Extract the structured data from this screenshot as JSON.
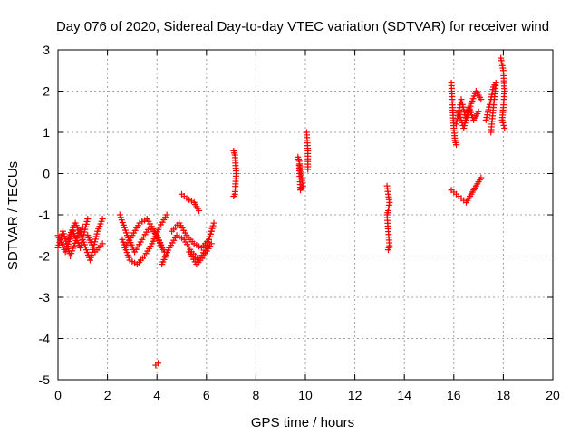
{
  "chart_data": {
    "type": "scatter",
    "title": "Day 076 of 2020, Sidereal Day-to-day VTEC variation (SDTVAR) for receiver wind",
    "xlabel": "GPS time / hours",
    "ylabel": "SDTVAR / TECUs",
    "xlim": [
      0,
      20
    ],
    "ylim": [
      -5,
      3
    ],
    "xticks": [
      "0",
      "2",
      "4",
      "6",
      "8",
      "10",
      "12",
      "14",
      "16",
      "18",
      "20"
    ],
    "yticks": [
      "-5",
      "-4",
      "-3",
      "-2",
      "-1",
      "0",
      "1",
      "2",
      "3"
    ],
    "grid": true,
    "marker": "+",
    "color": "#ff0000",
    "series": [
      {
        "name": "SDTVAR",
        "segments": [
          {
            "x": [
              0.0,
              0.2,
              0.5,
              0.8,
              1.0
            ],
            "y": [
              -1.8,
              -1.4,
              -2.0,
              -1.5,
              -1.3
            ]
          },
          {
            "x": [
              0.0,
              0.3,
              0.6,
              0.9,
              1.2
            ],
            "y": [
              -1.5,
              -1.9,
              -1.4,
              -1.8,
              -1.1
            ]
          },
          {
            "x": [
              0.4,
              0.7,
              1.0,
              1.3,
              1.6,
              1.8
            ],
            "y": [
              -1.6,
              -1.2,
              -1.6,
              -2.1,
              -1.4,
              -1.1
            ]
          },
          {
            "x": [
              1.2,
              1.5,
              1.8
            ],
            "y": [
              -1.5,
              -1.9,
              -1.7
            ]
          },
          {
            "x": [
              2.5,
              2.8,
              3.1,
              3.4,
              3.7,
              4.0,
              4.3
            ],
            "y": [
              -1.0,
              -1.5,
              -1.9,
              -1.6,
              -1.3,
              -1.5,
              -1.9
            ]
          },
          {
            "x": [
              2.6,
              2.9,
              3.2,
              3.5,
              3.8,
              4.1,
              4.4
            ],
            "y": [
              -1.6,
              -2.1,
              -2.2,
              -2.0,
              -1.7,
              -1.3,
              -1.0
            ]
          },
          {
            "x": [
              2.7,
              3.0,
              3.3,
              3.6,
              3.9,
              4.2
            ],
            "y": [
              -1.8,
              -1.5,
              -1.2,
              -1.1,
              -1.4,
              -1.8
            ]
          },
          {
            "x": [
              4.2,
              4.5,
              4.8,
              5.1,
              5.4,
              5.7,
              6.0,
              6.2
            ],
            "y": [
              -2.2,
              -1.8,
              -1.5,
              -1.6,
              -1.9,
              -2.1,
              -1.8,
              -1.4
            ]
          },
          {
            "x": [
              4.6,
              4.9,
              5.2,
              5.5,
              5.8,
              6.1,
              6.3
            ],
            "y": [
              -1.4,
              -1.2,
              -1.5,
              -1.7,
              -1.8,
              -1.6,
              -1.2
            ]
          },
          {
            "x": [
              5.0,
              5.2,
              5.5,
              5.7
            ],
            "y": [
              -0.5,
              -0.6,
              -0.7,
              -0.9
            ]
          },
          {
            "x": [
              5.3,
              5.6,
              5.9,
              6.2
            ],
            "y": [
              -1.9,
              -2.2,
              -2.0,
              -1.7
            ]
          },
          {
            "x": [
              3.95,
              4.05
            ],
            "y": [
              -4.65,
              -4.6
            ]
          },
          {
            "x": [
              7.1,
              7.15,
              7.2,
              7.15,
              7.1
            ],
            "y": [
              0.55,
              0.45,
              0.0,
              -0.5,
              -0.55
            ]
          },
          {
            "x": [
              9.7,
              9.75,
              9.8,
              9.85,
              9.9,
              9.8,
              9.75
            ],
            "y": [
              0.4,
              0.3,
              0.1,
              -0.1,
              -0.3,
              -0.4,
              0.2
            ]
          },
          {
            "x": [
              10.05,
              10.1,
              10.1
            ],
            "y": [
              1.0,
              0.55,
              0.1
            ]
          },
          {
            "x": [
              13.3,
              13.35,
              13.4,
              13.35,
              13.3,
              13.4,
              13.35
            ],
            "y": [
              -0.3,
              -0.5,
              -0.7,
              -0.9,
              -1.0,
              -1.75,
              -1.85
            ]
          },
          {
            "x": [
              15.9,
              15.95,
              16.0,
              16.05,
              16.1
            ],
            "y": [
              2.2,
              1.6,
              1.1,
              0.8,
              0.7
            ]
          },
          {
            "x": [
              16.1,
              16.3,
              16.5,
              16.7,
              16.9,
              17.1
            ],
            "y": [
              1.2,
              1.8,
              1.3,
              1.7,
              2.0,
              1.8
            ]
          },
          {
            "x": [
              16.2,
              16.4,
              16.6,
              16.8,
              17.0
            ],
            "y": [
              1.5,
              1.1,
              1.6,
              1.3,
              1.5
            ]
          },
          {
            "x": [
              15.9,
              16.1,
              16.3,
              16.5,
              16.7,
              16.9,
              17.1
            ],
            "y": [
              -0.4,
              -0.5,
              -0.6,
              -0.7,
              -0.5,
              -0.3,
              -0.1
            ]
          },
          {
            "x": [
              17.3,
              17.5,
              17.6,
              17.7,
              17.5
            ],
            "y": [
              1.3,
              1.8,
              2.1,
              2.2,
              1.0
            ]
          },
          {
            "x": [
              17.9,
              18.0,
              18.05,
              18.0,
              17.95,
              18.05
            ],
            "y": [
              2.8,
              2.5,
              2.0,
              1.6,
              1.3,
              1.1
            ]
          }
        ]
      }
    ]
  }
}
